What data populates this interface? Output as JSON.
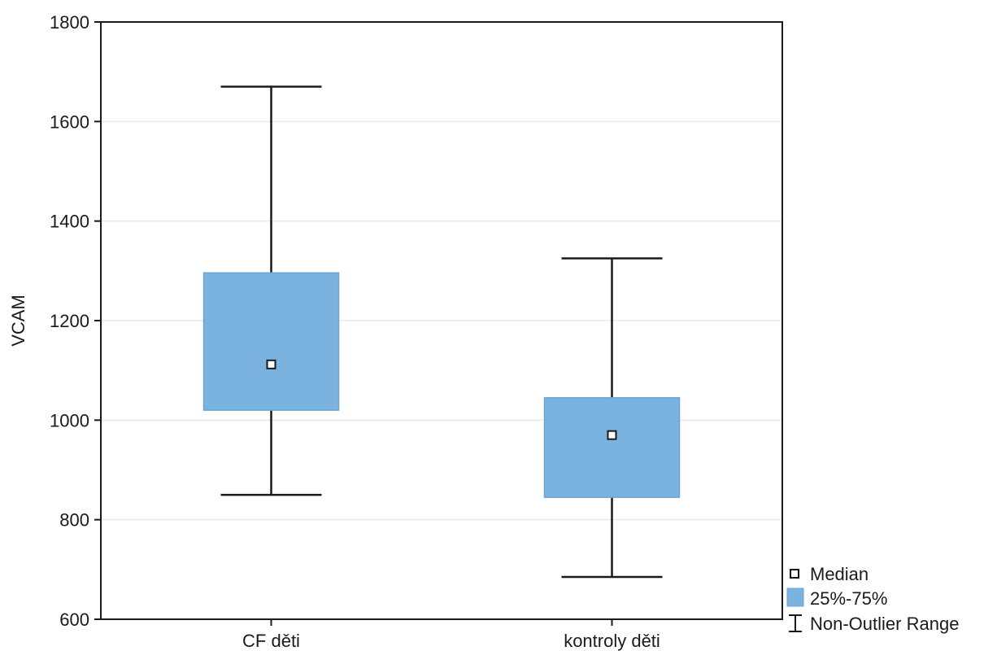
{
  "chart_data": {
    "type": "box",
    "ylabel": "VCAM",
    "xlabel": "",
    "ylim": [
      600,
      1800
    ],
    "yticks": [
      600,
      800,
      1000,
      1200,
      1400,
      1600,
      1800
    ],
    "grid": true,
    "categories": [
      "CF děti",
      "kontroly děti"
    ],
    "boxes": [
      {
        "category": "CF děti",
        "min": 850,
        "q1": 1020,
        "median": 1112,
        "q3": 1296,
        "max": 1670
      },
      {
        "category": "kontroly děti",
        "min": 685,
        "q1": 845,
        "median": 970,
        "q3": 1045,
        "max": 1325
      }
    ],
    "legend": {
      "placement": "bottom-right",
      "items": [
        {
          "key": "median",
          "label": "Median"
        },
        {
          "key": "box",
          "label": "25%-75%"
        },
        {
          "key": "whisker",
          "label": "Non-Outlier Range"
        }
      ]
    },
    "colors": {
      "box_fill": "#7ab2e0",
      "box_edge": "#6fa3d1",
      "line": "#1a1a1a",
      "grid": "#e8e8e8"
    }
  }
}
